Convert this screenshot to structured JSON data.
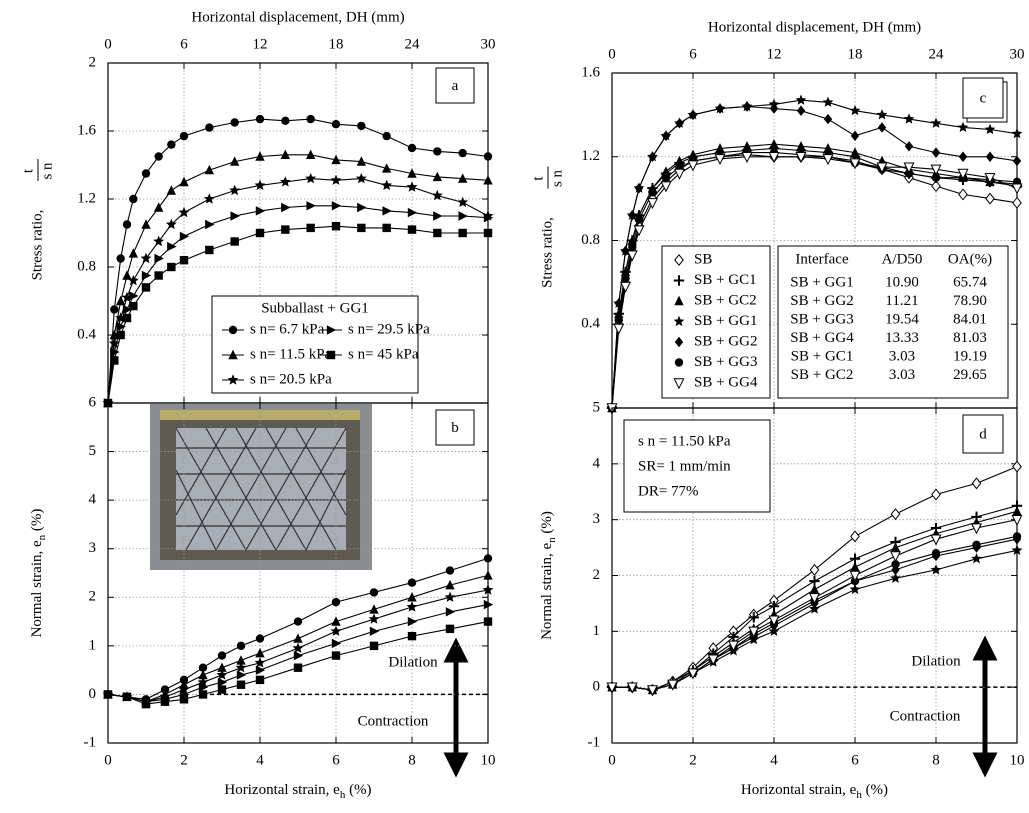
{
  "chart_data": [
    {
      "type": "line",
      "panel_label": "a",
      "color": "#000000",
      "grid": true,
      "x_axis_position": "top",
      "xlabel": "Horizontal displacement, DH (mm)",
      "ylabel": "Stress ratio,",
      "ylabel_fraction": {
        "num": "t",
        "den": "s n"
      },
      "xlim": [
        0,
        30
      ],
      "xticks": [
        0,
        6,
        12,
        18,
        24,
        30
      ],
      "ylim": [
        0,
        2
      ],
      "yticks": [
        0.4,
        0.8,
        1.2,
        1.6,
        2
      ],
      "legend_title": "Subballast + GG1",
      "x": [
        0,
        0.5,
        1,
        1.5,
        2,
        3,
        4,
        5,
        6,
        8,
        10,
        12,
        14,
        16,
        18,
        20,
        22,
        24,
        26,
        28,
        30
      ],
      "series": [
        {
          "name": "s n= 6.7 kPa",
          "marker": "circle",
          "values": [
            0,
            0.55,
            0.85,
            1.05,
            1.2,
            1.35,
            1.45,
            1.52,
            1.57,
            1.62,
            1.65,
            1.67,
            1.66,
            1.67,
            1.64,
            1.63,
            1.57,
            1.5,
            1.48,
            1.47,
            1.45
          ]
        },
        {
          "name": "s n= 11.5 kPa",
          "marker": "triangle",
          "values": [
            0,
            0.4,
            0.6,
            0.75,
            0.88,
            1.05,
            1.15,
            1.25,
            1.3,
            1.37,
            1.42,
            1.45,
            1.46,
            1.46,
            1.43,
            1.42,
            1.38,
            1.35,
            1.33,
            1.32,
            1.31
          ]
        },
        {
          "name": "s n= 20.5 kPa",
          "marker": "star",
          "values": [
            0,
            0.35,
            0.5,
            0.62,
            0.72,
            0.85,
            0.95,
            1.05,
            1.12,
            1.2,
            1.25,
            1.28,
            1.3,
            1.32,
            1.31,
            1.32,
            1.28,
            1.27,
            1.22,
            1.18,
            1.1
          ]
        },
        {
          "name": "s n= 29.5 kPa",
          "marker": "triangle-right",
          "values": [
            0,
            0.3,
            0.45,
            0.55,
            0.63,
            0.75,
            0.85,
            0.92,
            0.98,
            1.05,
            1.1,
            1.13,
            1.15,
            1.16,
            1.16,
            1.15,
            1.13,
            1.12,
            1.1,
            1.1,
            1.09
          ]
        },
        {
          "name": "s n= 45 kPa",
          "marker": "square",
          "values": [
            0,
            0.25,
            0.4,
            0.5,
            0.57,
            0.68,
            0.75,
            0.8,
            0.84,
            0.9,
            0.95,
            1.0,
            1.02,
            1.03,
            1.04,
            1.03,
            1.03,
            1.02,
            1.0,
            1.0,
            1.0
          ]
        }
      ]
    },
    {
      "type": "line",
      "panel_label": "b",
      "color": "#000000",
      "grid": true,
      "x_axis_position": "bottom",
      "xlabel": "Horizontal strain, e",
      "xlabel_sub": "h",
      "xlabel_tail": " (%)",
      "ylabel": "Normal strain, e",
      "ylabel_sub": "n",
      "ylabel_tail": " (%)",
      "annotations": [
        "Dilation",
        "Contraction"
      ],
      "xlim": [
        0,
        10
      ],
      "xticks": [
        0,
        2,
        4,
        6,
        8,
        10
      ],
      "ylim": [
        -1,
        6
      ],
      "yticks": [
        -1,
        0,
        1,
        2,
        3,
        4,
        5,
        6
      ],
      "x": [
        0,
        0.5,
        1,
        1.5,
        2,
        2.5,
        3,
        3.5,
        4,
        5,
        6,
        7,
        8,
        9,
        10
      ],
      "series": [
        {
          "name": "s n= 6.7 kPa",
          "marker": "circle",
          "values": [
            0,
            -0.05,
            -0.1,
            0.1,
            0.3,
            0.55,
            0.8,
            1.0,
            1.15,
            1.5,
            1.9,
            2.1,
            2.3,
            2.55,
            2.8
          ]
        },
        {
          "name": "s n= 11.5 kPa",
          "marker": "triangle",
          "values": [
            0,
            -0.05,
            -0.15,
            0,
            0.2,
            0.4,
            0.55,
            0.7,
            0.85,
            1.15,
            1.5,
            1.75,
            2.0,
            2.25,
            2.45
          ]
        },
        {
          "name": "s n= 20.5 kPa",
          "marker": "star",
          "values": [
            0,
            -0.05,
            -0.15,
            -0.05,
            0.1,
            0.25,
            0.4,
            0.55,
            0.65,
            0.95,
            1.3,
            1.55,
            1.8,
            2.0,
            2.15
          ]
        },
        {
          "name": "s n= 29.5 kPa",
          "marker": "triangle-right",
          "values": [
            0,
            -0.05,
            -0.15,
            -0.1,
            0,
            0.15,
            0.25,
            0.4,
            0.5,
            0.8,
            1.05,
            1.3,
            1.5,
            1.7,
            1.85
          ]
        },
        {
          "name": "s n= 45 kPa",
          "marker": "square",
          "values": [
            0,
            -0.05,
            -0.2,
            -0.15,
            -0.1,
            0,
            0.1,
            0.2,
            0.3,
            0.55,
            0.8,
            1.0,
            1.2,
            1.35,
            1.5
          ]
        }
      ]
    },
    {
      "type": "line",
      "panel_label": "c",
      "color": "#000000",
      "grid": true,
      "x_axis_position": "top",
      "xlabel": "Horizontal displacement, DH (mm)",
      "ylabel": "Stress ratio,",
      "ylabel_fraction": {
        "num": "t",
        "den": "s n"
      },
      "xlim": [
        0,
        30
      ],
      "xticks": [
        0,
        6,
        12,
        18,
        24,
        30
      ],
      "ylim": [
        0,
        1.6
      ],
      "yticks": [
        0.4,
        0.8,
        1.2,
        1.6
      ],
      "table": {
        "header": [
          "Interface",
          "A/D50",
          "OA(%)"
        ],
        "rows": [
          [
            "SB + GG1",
            "10.90",
            "65.74"
          ],
          [
            "SB + GG2",
            "11.21",
            "78.90"
          ],
          [
            "SB + GG3",
            "19.54",
            "84.01"
          ],
          [
            "SB + GG4",
            "13.33",
            "81.03"
          ],
          [
            "SB + GC1",
            "3.03",
            "19.19"
          ],
          [
            "SB + GC2",
            "3.03",
            "29.65"
          ]
        ]
      },
      "x": [
        0,
        0.5,
        1,
        1.5,
        2,
        3,
        4,
        5,
        6,
        8,
        10,
        12,
        14,
        16,
        18,
        20,
        22,
        24,
        26,
        28,
        30
      ],
      "series": [
        {
          "name": "SB",
          "marker": "diamond-open",
          "values": [
            0,
            0.4,
            0.6,
            0.75,
            0.87,
            1.0,
            1.08,
            1.14,
            1.18,
            1.2,
            1.21,
            1.2,
            1.2,
            1.2,
            1.18,
            1.14,
            1.1,
            1.06,
            1.02,
            1.0,
            0.98
          ]
        },
        {
          "name": "SB + GC1",
          "marker": "plus",
          "values": [
            0,
            0.45,
            0.65,
            0.8,
            0.92,
            1.05,
            1.12,
            1.17,
            1.2,
            1.22,
            1.23,
            1.24,
            1.23,
            1.22,
            1.2,
            1.15,
            1.12,
            1.1,
            1.09,
            1.08,
            1.06
          ]
        },
        {
          "name": "SB + GC2",
          "marker": "triangle",
          "values": [
            0,
            0.45,
            0.65,
            0.8,
            0.92,
            1.05,
            1.13,
            1.18,
            1.21,
            1.24,
            1.25,
            1.26,
            1.25,
            1.24,
            1.22,
            1.18,
            1.14,
            1.12,
            1.1,
            1.08,
            1.07
          ]
        },
        {
          "name": "SB + GG1",
          "marker": "star",
          "values": [
            0,
            0.5,
            0.75,
            0.92,
            1.05,
            1.2,
            1.3,
            1.36,
            1.4,
            1.43,
            1.44,
            1.45,
            1.47,
            1.46,
            1.42,
            1.4,
            1.38,
            1.36,
            1.34,
            1.33,
            1.31
          ]
        },
        {
          "name": "SB + GG2",
          "marker": "diamond",
          "values": [
            0,
            0.5,
            0.75,
            0.92,
            1.05,
            1.2,
            1.3,
            1.36,
            1.4,
            1.43,
            1.44,
            1.43,
            1.42,
            1.38,
            1.3,
            1.34,
            1.25,
            1.22,
            1.2,
            1.2,
            1.18
          ]
        },
        {
          "name": "SB + GG3",
          "marker": "circle",
          "values": [
            0,
            0.42,
            0.62,
            0.77,
            0.9,
            1.03,
            1.1,
            1.15,
            1.18,
            1.2,
            1.22,
            1.22,
            1.21,
            1.2,
            1.17,
            1.14,
            1.12,
            1.1,
            1.1,
            1.09,
            1.08
          ]
        },
        {
          "name": "SB + GG4",
          "marker": "triangle-down-open",
          "values": [
            0,
            0.38,
            0.58,
            0.73,
            0.85,
            0.98,
            1.06,
            1.12,
            1.16,
            1.19,
            1.2,
            1.2,
            1.2,
            1.19,
            1.17,
            1.15,
            1.15,
            1.14,
            1.12,
            1.1,
            1.05
          ]
        }
      ]
    },
    {
      "type": "line",
      "panel_label": "d",
      "color": "#000000",
      "grid": true,
      "x_axis_position": "bottom",
      "xlabel": "Horizontal strain, e",
      "xlabel_sub": "h",
      "xlabel_tail": " (%)",
      "ylabel": "Normal strain, e",
      "ylabel_sub": "n",
      "ylabel_tail": " (%)",
      "annotations": [
        "Dilation",
        "Contraction"
      ],
      "conditions": [
        "s n = 11.50 kPa",
        "SR= 1 mm/min",
        "DR= 77%"
      ],
      "xlim": [
        0,
        10
      ],
      "xticks": [
        0,
        2,
        4,
        6,
        8,
        10
      ],
      "ylim": [
        -1,
        5
      ],
      "yticks": [
        -1,
        0,
        1,
        2,
        3,
        4,
        5
      ],
      "x": [
        0,
        0.5,
        1,
        1.5,
        2,
        2.5,
        3,
        3.5,
        4,
        5,
        6,
        7,
        8,
        9,
        10
      ],
      "series": [
        {
          "name": "SB",
          "marker": "diamond-open",
          "values": [
            0,
            0,
            -0.05,
            0.1,
            0.35,
            0.7,
            1.0,
            1.3,
            1.55,
            2.1,
            2.7,
            3.1,
            3.45,
            3.65,
            3.95
          ]
        },
        {
          "name": "SB + GC1",
          "marker": "plus",
          "values": [
            0,
            0,
            -0.05,
            0.1,
            0.3,
            0.6,
            0.9,
            1.25,
            1.45,
            1.9,
            2.3,
            2.6,
            2.85,
            3.05,
            3.25
          ]
        },
        {
          "name": "SB + GC2",
          "marker": "triangle",
          "values": [
            0,
            0,
            -0.05,
            0.05,
            0.3,
            0.55,
            0.8,
            1.05,
            1.3,
            1.75,
            2.15,
            2.5,
            2.75,
            2.95,
            3.15
          ]
        },
        {
          "name": "SB + GG1",
          "marker": "star",
          "values": [
            0,
            0,
            -0.05,
            0.05,
            0.25,
            0.45,
            0.65,
            0.85,
            1.0,
            1.4,
            1.75,
            1.95,
            2.1,
            2.3,
            2.45
          ]
        },
        {
          "name": "SB + GG2",
          "marker": "diamond",
          "values": [
            0,
            0,
            -0.05,
            0.05,
            0.25,
            0.5,
            0.7,
            0.9,
            1.1,
            1.5,
            1.9,
            2.1,
            2.35,
            2.5,
            2.65
          ]
        },
        {
          "name": "SB + GG3",
          "marker": "circle",
          "values": [
            0,
            0,
            -0.05,
            0.05,
            0.25,
            0.5,
            0.7,
            0.95,
            1.15,
            1.55,
            1.9,
            2.2,
            2.4,
            2.55,
            2.7
          ]
        },
        {
          "name": "SB + GG4",
          "marker": "triangle-down-open",
          "values": [
            0,
            0,
            -0.05,
            0.05,
            0.25,
            0.5,
            0.75,
            1.0,
            1.2,
            1.6,
            2.0,
            2.35,
            2.65,
            2.85,
            3.0
          ]
        }
      ]
    }
  ]
}
